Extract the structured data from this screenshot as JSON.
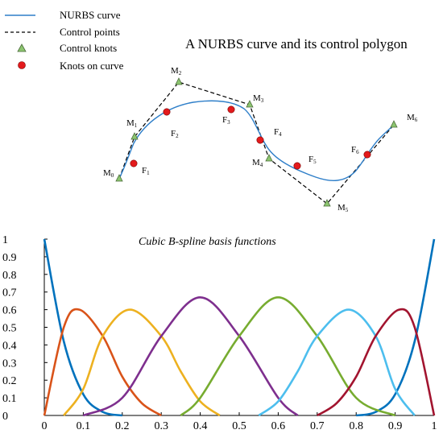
{
  "chart_data": [
    {
      "type": "line",
      "title": "A NURBS curve and its control polygon",
      "legend": {
        "placement": "top-left",
        "entries": [
          {
            "label": "NURBS curve",
            "style": "solid-line",
            "color": "#2f7fc9"
          },
          {
            "label": "Control points",
            "style": "dashed-line",
            "color": "#000000"
          },
          {
            "label": "Control knots",
            "style": "triangle-marker",
            "color": "#8cc56f"
          },
          {
            "label": "Knots on curve",
            "style": "circle-marker",
            "color": "#e31a1c"
          }
        ]
      },
      "control_points": [
        {
          "label": "M",
          "sub": "0"
        },
        {
          "label": "M",
          "sub": "1"
        },
        {
          "label": "M",
          "sub": "2"
        },
        {
          "label": "M",
          "sub": "3"
        },
        {
          "label": "M",
          "sub": "4"
        },
        {
          "label": "M",
          "sub": "5"
        },
        {
          "label": "M",
          "sub": "6"
        }
      ],
      "knots_on_curve": [
        {
          "label": "F",
          "sub": "1"
        },
        {
          "label": "F",
          "sub": "2"
        },
        {
          "label": "F",
          "sub": "3"
        },
        {
          "label": "F",
          "sub": "4"
        },
        {
          "label": "F",
          "sub": "5"
        },
        {
          "label": "F",
          "sub": "6"
        }
      ],
      "axes_visible": false
    },
    {
      "type": "line",
      "title": "Cubic B-spline basis functions",
      "xlim": [
        0,
        1
      ],
      "ylim": [
        0,
        1
      ],
      "xticks": [
        "0",
        "0.1",
        "0.2",
        "0.3",
        "0.4",
        "0.5",
        "0.6",
        "0.7",
        "0.8",
        "0.9",
        "1"
      ],
      "yticks": [
        "0",
        "0.1",
        "0.2",
        "0.3",
        "0.4",
        "0.5",
        "0.6",
        "0.7",
        "0.8",
        "0.9",
        "1"
      ],
      "grid": false,
      "series": [
        {
          "color": "#0072bd",
          "x": [
            0,
            0.05,
            0.1,
            0.15,
            0.2,
            0.8,
            0.85,
            0.9,
            0.95,
            1
          ],
          "values": [
            1,
            0.42,
            0.12,
            0.02,
            0,
            0,
            0.02,
            0.12,
            0.42,
            1
          ]
        },
        {
          "color": "#d95319",
          "x": [
            0,
            0.05,
            0.09,
            0.15,
            0.2,
            0.25,
            0.3
          ],
          "values": [
            0,
            0.5,
            0.6,
            0.45,
            0.22,
            0.07,
            0
          ]
        },
        {
          "color": "#edb120",
          "x": [
            0.05,
            0.1,
            0.15,
            0.22,
            0.3,
            0.35,
            0.4,
            0.45
          ],
          "values": [
            0,
            0.15,
            0.45,
            0.6,
            0.45,
            0.25,
            0.08,
            0
          ]
        },
        {
          "color": "#7e2f8e",
          "x": [
            0.1,
            0.2,
            0.3,
            0.4,
            0.5,
            0.6,
            0.65
          ],
          "values": [
            0,
            0.1,
            0.45,
            0.67,
            0.45,
            0.1,
            0
          ]
        },
        {
          "color": "#77ac30",
          "x": [
            0.35,
            0.4,
            0.5,
            0.6,
            0.7,
            0.8,
            0.9
          ],
          "values": [
            0,
            0.1,
            0.45,
            0.67,
            0.45,
            0.1,
            0
          ]
        },
        {
          "color": "#4dbeee",
          "x": [
            0.55,
            0.6,
            0.65,
            0.7,
            0.78,
            0.85,
            0.9,
            0.95
          ],
          "values": [
            0,
            0.08,
            0.25,
            0.45,
            0.6,
            0.45,
            0.15,
            0
          ]
        },
        {
          "color": "#a2142f",
          "x": [
            0.7,
            0.75,
            0.8,
            0.85,
            0.91,
            0.95,
            1
          ],
          "values": [
            0,
            0.07,
            0.22,
            0.45,
            0.6,
            0.5,
            0
          ]
        }
      ]
    }
  ]
}
